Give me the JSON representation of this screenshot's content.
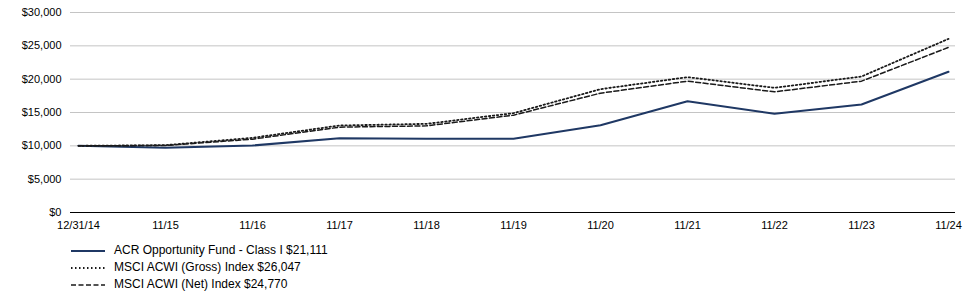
{
  "chart_data": {
    "type": "line",
    "categories": [
      "12/31/14",
      "11/15",
      "11/16",
      "11/17",
      "11/18",
      "11/19",
      "11/20",
      "11/21",
      "11/22",
      "11/23",
      "11/24"
    ],
    "series": [
      {
        "name": "ACR Opportunity Fund - Class I $21,111",
        "color": "#1F3864",
        "line_style": "solid",
        "values": [
          10000,
          9700,
          10050,
          11150,
          11050,
          11050,
          13100,
          16700,
          14800,
          16200,
          21111
        ]
      },
      {
        "name": "MSCI ACWI (Gross) Index $26,047",
        "color": "#1a1a1a",
        "line_style": "dotted",
        "values": [
          10000,
          10100,
          11200,
          13050,
          13300,
          14900,
          18500,
          20300,
          18700,
          20400,
          26047
        ]
      },
      {
        "name": "MSCI ACWI (Net) Index $24,770",
        "color": "#1a1a1a",
        "line_style": "dashed",
        "values": [
          10000,
          10050,
          11000,
          12800,
          13000,
          14600,
          17900,
          19700,
          18100,
          19700,
          24770
        ]
      }
    ],
    "ylim": [
      0,
      30000
    ],
    "yticks": [
      {
        "value": 0,
        "label": "$0"
      },
      {
        "value": 5000,
        "label": "$5,000"
      },
      {
        "value": 10000,
        "label": "$10,000"
      },
      {
        "value": 15000,
        "label": "$15,000"
      },
      {
        "value": 20000,
        "label": "$20,000"
      },
      {
        "value": 25000,
        "label": "$25,000"
      },
      {
        "value": 30000,
        "label": "$30,000"
      }
    ],
    "grid": true,
    "legend": "bottom"
  }
}
